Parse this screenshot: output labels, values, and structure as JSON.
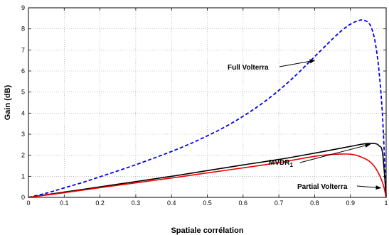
{
  "chart_data": {
    "type": "line",
    "xlabel": "Spatiale corrélation",
    "ylabel": "Gain (dB)",
    "xlim": [
      0,
      1
    ],
    "ylim": [
      0,
      9
    ],
    "xticks": [
      "0",
      "0.1",
      "0.2",
      "0.3",
      "0.4",
      "0.5",
      "0.6",
      "0.7",
      "0.8",
      "0.9",
      "1"
    ],
    "yticks": [
      "0",
      "1",
      "2",
      "3",
      "4",
      "5",
      "6",
      "7",
      "8",
      "9"
    ],
    "grid": true,
    "series": [
      {
        "name": "Full Volterra",
        "color": "#0000ee",
        "style": "dashed",
        "x": [
          0,
          0.05,
          0.1,
          0.15,
          0.2,
          0.25,
          0.3,
          0.35,
          0.4,
          0.45,
          0.5,
          0.55,
          0.6,
          0.65,
          0.7,
          0.75,
          0.8,
          0.85,
          0.88,
          0.9,
          0.92,
          0.935,
          0.95,
          0.96,
          0.97,
          0.98,
          0.99,
          1.0
        ],
        "y": [
          0,
          0.2,
          0.45,
          0.7,
          0.98,
          1.26,
          1.55,
          1.86,
          2.18,
          2.53,
          2.92,
          3.35,
          3.85,
          4.42,
          5.08,
          5.84,
          6.68,
          7.52,
          7.98,
          8.22,
          8.38,
          8.42,
          8.3,
          8.0,
          7.3,
          6.0,
          3.8,
          0
        ]
      },
      {
        "name": "MVDR",
        "name_subscript": "1",
        "color": "#000000",
        "style": "solid",
        "x": [
          0,
          0.1,
          0.2,
          0.3,
          0.4,
          0.5,
          0.6,
          0.7,
          0.8,
          0.85,
          0.9,
          0.93,
          0.95,
          0.97,
          0.98,
          0.99,
          1.0
        ],
        "y": [
          0,
          0.25,
          0.5,
          0.75,
          1.0,
          1.27,
          1.54,
          1.8,
          2.1,
          2.26,
          2.42,
          2.52,
          2.56,
          2.55,
          2.45,
          2.1,
          0
        ]
      },
      {
        "name": "Partial Volterra",
        "color": "#ee0000",
        "style": "solid",
        "x": [
          0,
          0.1,
          0.2,
          0.3,
          0.4,
          0.5,
          0.6,
          0.7,
          0.75,
          0.8,
          0.85,
          0.88,
          0.9,
          0.92,
          0.95,
          0.97,
          0.99,
          1.0
        ],
        "y": [
          0,
          0.22,
          0.46,
          0.69,
          0.92,
          1.16,
          1.4,
          1.65,
          1.8,
          1.95,
          2.04,
          2.06,
          2.05,
          1.98,
          1.75,
          1.4,
          0.7,
          0
        ]
      }
    ],
    "annotations": [
      {
        "label": "Full Volterra",
        "target": [
          0.8,
          6.5
        ]
      },
      {
        "label": "MVDR",
        "subscript": "1",
        "target": [
          0.955,
          2.52
        ]
      },
      {
        "label": "Partial Volterra",
        "target": [
          0.985,
          0.45
        ]
      }
    ]
  }
}
